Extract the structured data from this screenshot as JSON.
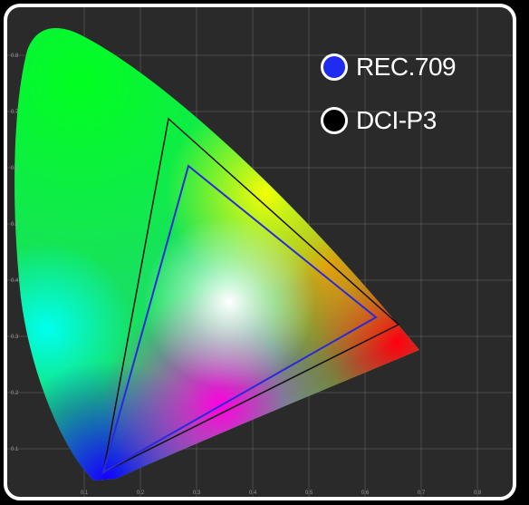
{
  "legend": {
    "items": [
      {
        "label": "REC.709",
        "fill": "#1f2cf0",
        "outline": "#ffffff"
      },
      {
        "label": "DCI-P3",
        "fill": "#000000",
        "outline": "#ffffff"
      }
    ]
  },
  "colors": {
    "background": "#2a2a2a",
    "frame": "#ffffff",
    "grid": "#8a8a8a",
    "rec709_outline": "#2a2ad8",
    "dcip3_outline": "#111111"
  },
  "chart_data": {
    "type": "chromaticity-diagram",
    "x_ticks": [
      "0.1",
      "0.2",
      "0.3",
      "0.4",
      "0.5",
      "0.6",
      "0.7",
      "0.8"
    ],
    "y_ticks": [
      "0.1",
      "0.2",
      "0.3",
      "0.4",
      "0.5",
      "0.6",
      "0.7",
      "0.8"
    ],
    "grid": true,
    "legend_position": "top-right",
    "series": [
      {
        "name": "REC.709",
        "primaries": {
          "red": [
            0.64,
            0.33
          ],
          "green": [
            0.3,
            0.6
          ],
          "blue": [
            0.15,
            0.06
          ]
        }
      },
      {
        "name": "DCI-P3",
        "primaries": {
          "red": [
            0.68,
            0.32
          ],
          "green": [
            0.265,
            0.69
          ],
          "blue": [
            0.15,
            0.06
          ]
        }
      }
    ]
  }
}
